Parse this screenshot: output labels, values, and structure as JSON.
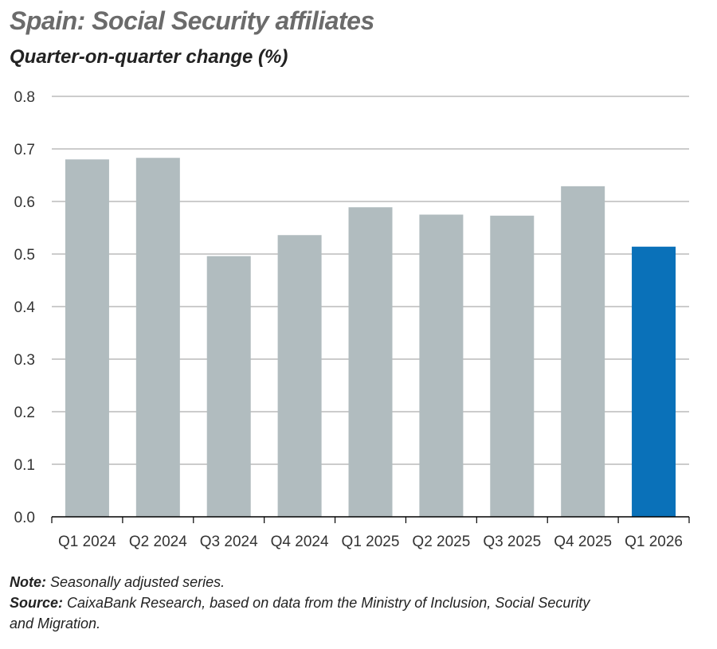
{
  "colors": {
    "bar": "#b1bcbf",
    "highlight": "#0a71b9",
    "grid": "#9a9a9a",
    "axis": "#000000"
  },
  "note": {
    "label": "Note:",
    "text": "Seasonally adjusted series."
  },
  "source": {
    "label": "Source:",
    "line1": "CaixaBank Research, based on data from the Ministry of Inclusion, Social Security",
    "line2": "and Migration."
  },
  "chart_data": {
    "type": "bar",
    "title": "Spain: Social Security affiliates",
    "subtitle": "Quarter-on-quarter change (%)",
    "xlabel": "",
    "ylabel": "",
    "ylim": [
      0.0,
      0.8
    ],
    "yticks": [
      "0.0",
      "0.1",
      "0.2",
      "0.3",
      "0.4",
      "0.5",
      "0.6",
      "0.7",
      "0.8"
    ],
    "grid": true,
    "categories": [
      "Q1 2024",
      "Q2 2024",
      "Q3 2024",
      "Q4 2024",
      "Q1 2025",
      "Q2 2025",
      "Q3 2025",
      "Q4 2025",
      "Q1 2026"
    ],
    "values": [
      0.68,
      0.683,
      0.496,
      0.536,
      0.589,
      0.575,
      0.573,
      0.629,
      0.514
    ],
    "highlight_index": 8
  }
}
